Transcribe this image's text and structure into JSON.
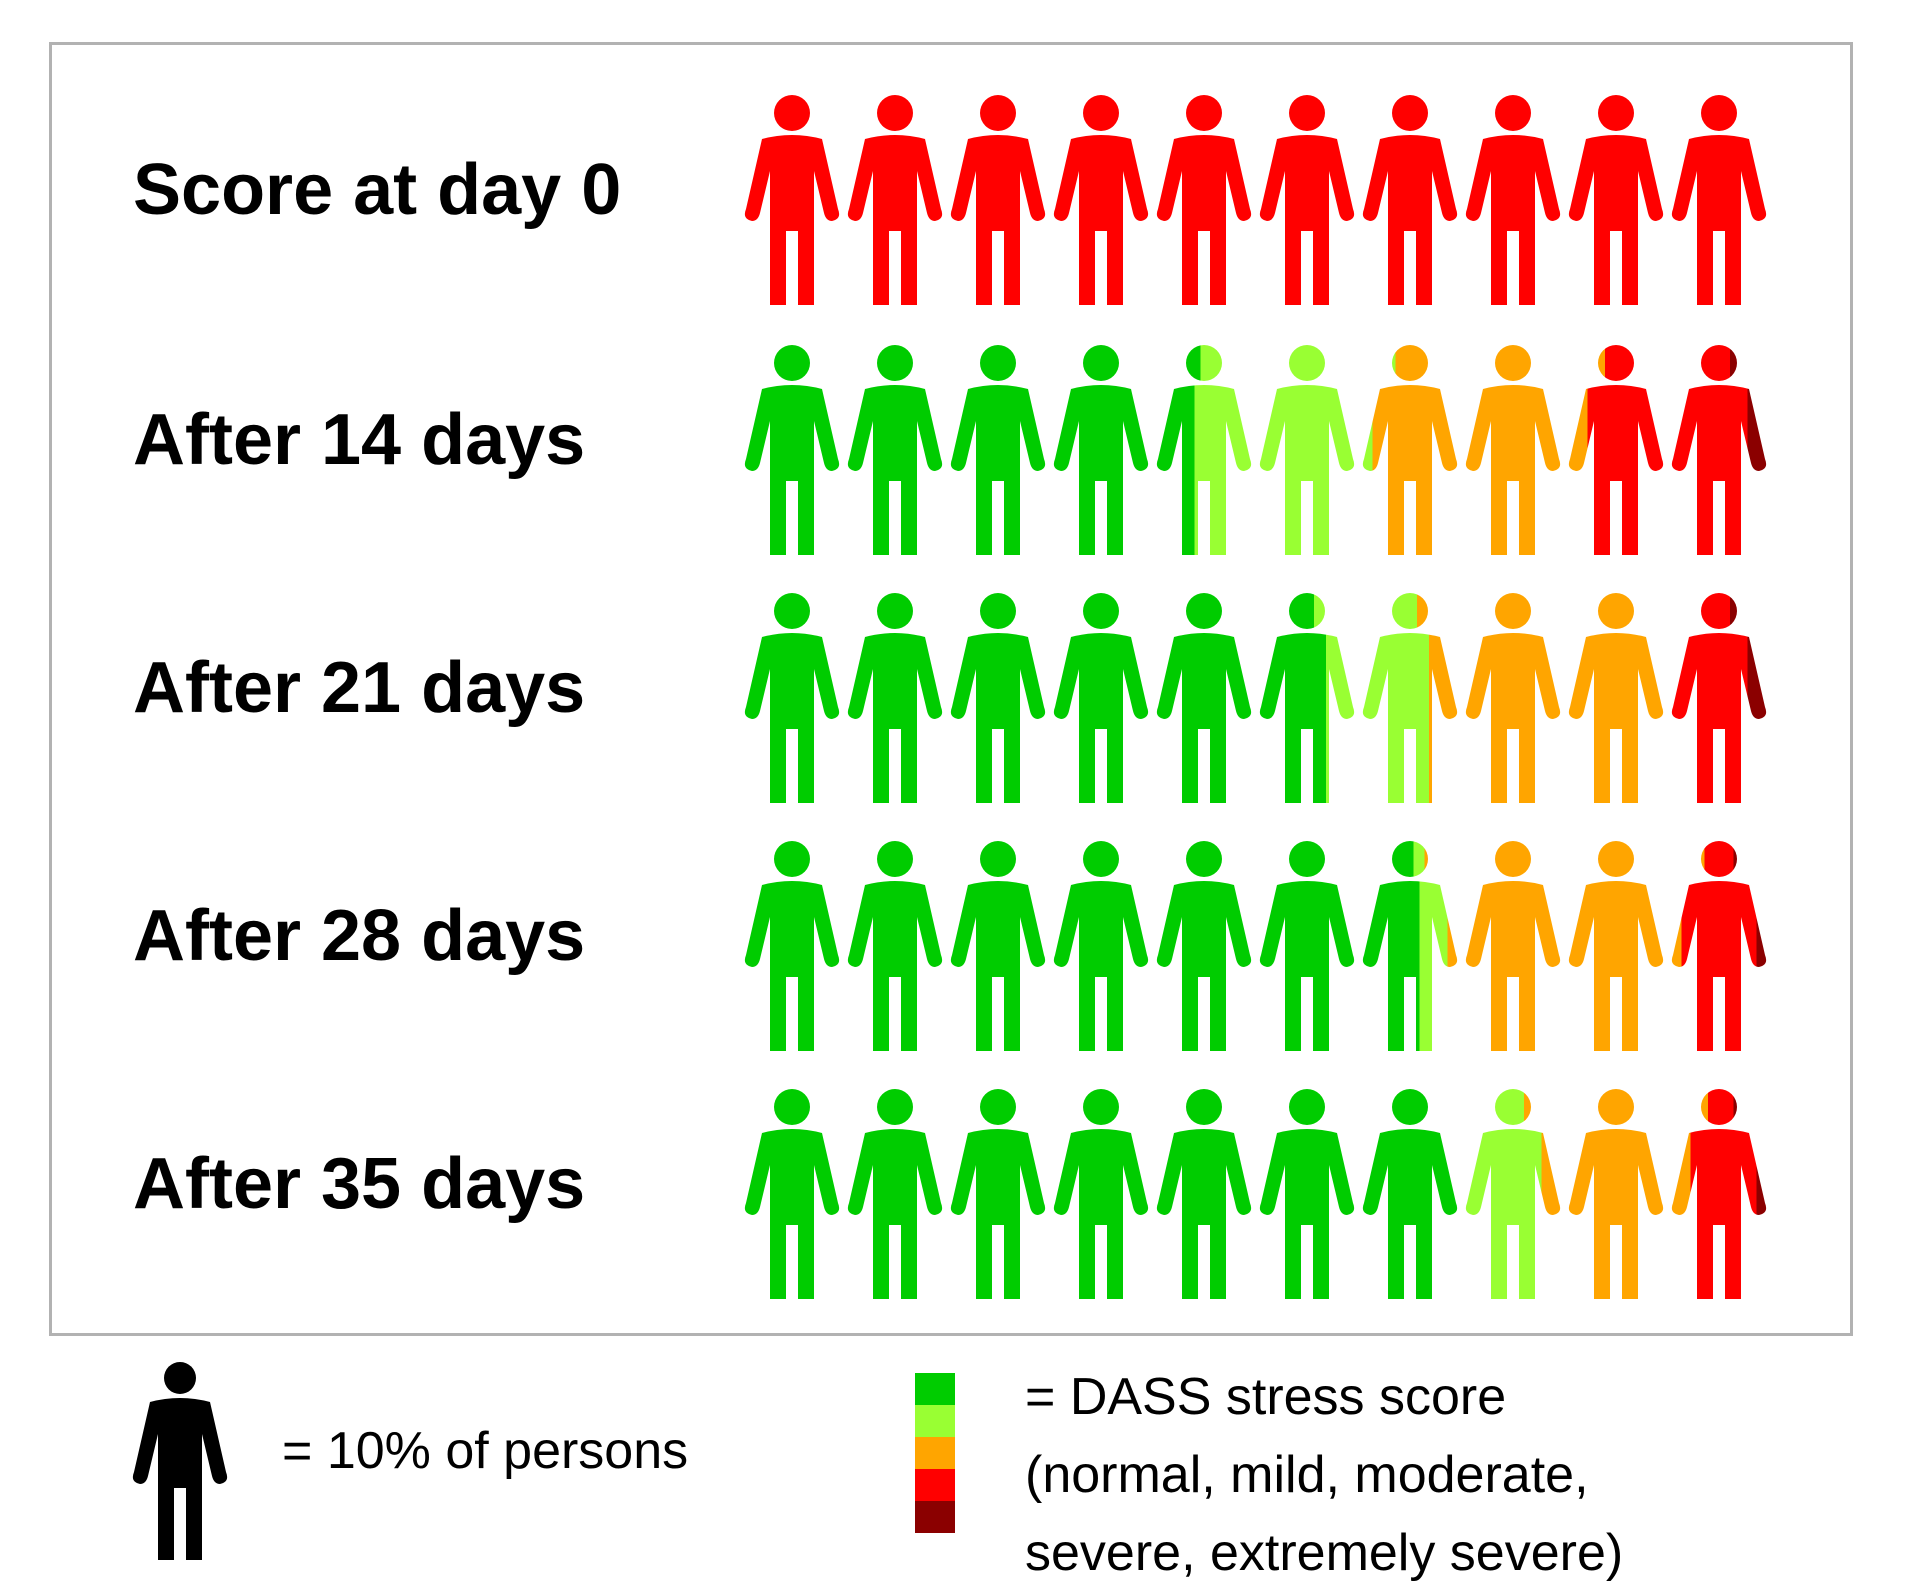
{
  "chart_data": {
    "type": "pictograph",
    "unit": "= 10% of persons",
    "categories": [
      "normal",
      "mild",
      "moderate",
      "severe",
      "extremely severe"
    ],
    "colors": {
      "normal": "#00cc00",
      "mild": "#99ff33",
      "moderate": "#ffa500",
      "severe": "#ff0000",
      "extremely severe": "#8b0000"
    },
    "rows": [
      {
        "label": "Score at day 0",
        "percent": {
          "normal": 0,
          "mild": 0,
          "moderate": 0,
          "severe": 100,
          "extremely severe": 0
        }
      },
      {
        "label": "After 14 days",
        "percent": {
          "normal": 44,
          "mild": 17,
          "moderate": 21,
          "severe": 16,
          "extremely severe": 2
        }
      },
      {
        "label": "After 21 days",
        "percent": {
          "normal": 57,
          "mild": 10,
          "moderate": 23,
          "severe": 8,
          "extremely severe": 2
        }
      },
      {
        "label": "After 28 days",
        "percent": {
          "normal": 66,
          "mild": 3,
          "moderate": 22,
          "severe": 8,
          "extremely severe": 1
        }
      },
      {
        "label": "After 35 days",
        "percent": {
          "normal": 70,
          "mild": 8,
          "moderate": 14,
          "severe": 7,
          "extremely severe": 1
        }
      }
    ]
  },
  "legend": {
    "person_text": "= 10% of persons",
    "score_lines": [
      "= DASS stress score",
      "(normal, mild, moderate,",
      "severe, extremely severe)"
    ]
  }
}
